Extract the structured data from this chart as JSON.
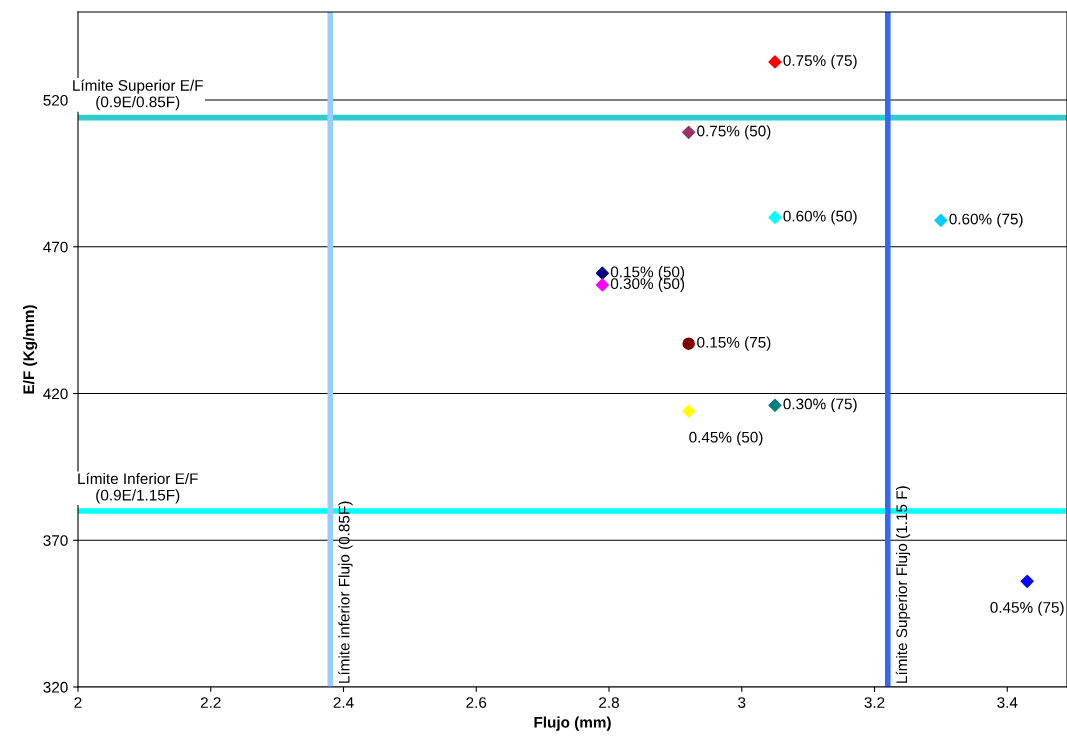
{
  "chart_data": {
    "type": "scatter",
    "xlabel": "Flujo (mm)",
    "ylabel": "E/F (Kg/mm)",
    "xlim": [
      2,
      3.49
    ],
    "xticks": [
      2,
      2.2,
      2.4,
      2.6,
      2.8,
      3,
      3.2,
      3.4
    ],
    "ylim": [
      320,
      550
    ],
    "yticks": [
      320,
      370,
      420,
      470,
      520
    ],
    "grid": "y",
    "legend": false,
    "series": [
      {
        "name": "0.75% (75)",
        "color": "#ff0000",
        "marker": "diamond",
        "x": [
          3.05
        ],
        "values": [
          533
        ]
      },
      {
        "name": "0.75% (50)",
        "color": "#993366",
        "marker": "diamond",
        "x": [
          2.92
        ],
        "values": [
          509
        ]
      },
      {
        "name": "0.60% (50)",
        "color": "#00ffff",
        "marker": "diamond",
        "x": [
          3.05
        ],
        "values": [
          480
        ]
      },
      {
        "name": "0.60% (75)",
        "color": "#00ccff",
        "marker": "diamond",
        "x": [
          3.3
        ],
        "values": [
          479
        ]
      },
      {
        "name": "0.15% (50)",
        "color": "#000080",
        "marker": "diamond",
        "x": [
          2.79
        ],
        "values": [
          461
        ]
      },
      {
        "name": "0.30% (50)",
        "color": "#ff00ff",
        "marker": "diamond",
        "x": [
          2.79
        ],
        "values": [
          457
        ]
      },
      {
        "name": "0.15% (75)",
        "color": "#800000",
        "marker": "circle",
        "x": [
          2.92
        ],
        "values": [
          437
        ]
      },
      {
        "name": "0.30% (75)",
        "color": "#008080",
        "marker": "diamond",
        "x": [
          3.05
        ],
        "values": [
          416
        ]
      },
      {
        "name": "0.45% (50)",
        "color": "#ffff00",
        "marker": "diamond",
        "x": [
          2.92
        ],
        "values": [
          414
        ]
      },
      {
        "name": "0.45% (75)",
        "color": "#0000ff",
        "marker": "diamond",
        "x": [
          3.43
        ],
        "values": [
          356
        ]
      }
    ],
    "ref_lines": [
      {
        "axis": "y",
        "value": 514,
        "label": "Límite Superior E/F\n(0.9E/0.85F)",
        "color": "#33cccc"
      },
      {
        "axis": "y",
        "value": 380,
        "label": "Límite Inferior E/F\n(0.9E/1.15F)",
        "color": "#00ffff"
      },
      {
        "axis": "x",
        "value": 2.38,
        "label": "Límite inferior Flujo (0.85F)",
        "color": "#99ccff"
      },
      {
        "axis": "x",
        "value": 3.22,
        "label": "Límite Superior Flujo (1.15 F)",
        "color": "#3366ff"
      }
    ]
  }
}
